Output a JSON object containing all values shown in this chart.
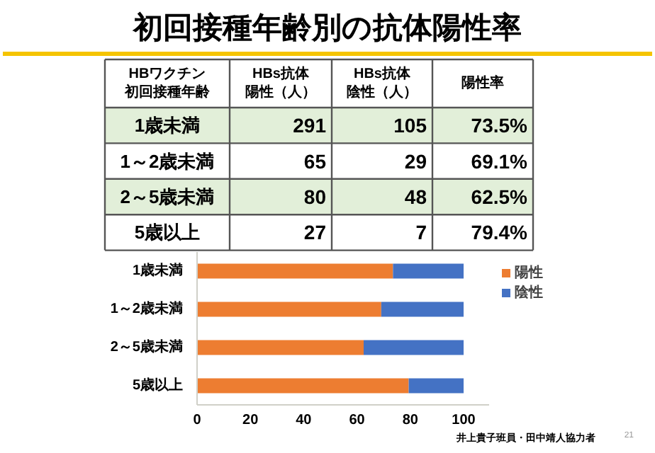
{
  "chart_data": [
    {
      "type": "other",
      "title": "初回接種年齢別の抗体陽性率",
      "ylabel": "HBワクチン初回接種年齢",
      "categories": [
        "1歳未満",
        "1～2歳未満",
        "2～5歳未満",
        "5歳以上"
      ],
      "series": [
        {
          "name": "HBs抗体陽性（人）",
          "values": [
            291,
            65,
            80,
            27
          ],
          "value_labels": [
            "291",
            "65",
            "80",
            "27"
          ]
        },
        {
          "name": "HBs抗体陰性（人）",
          "values": [
            105,
            29,
            48,
            7
          ],
          "value_labels": [
            "105",
            "29",
            "48",
            "7"
          ]
        },
        {
          "name": "陽性率",
          "values": [
            73.5,
            69.1,
            62.5,
            79.4
          ],
          "value_labels": [
            "73.5%",
            "69.1%",
            "62.5%",
            "79.4%"
          ]
        }
      ],
      "colors": [
        "#e2efd9",
        "#ffffff",
        "#e2efd9",
        "#ffffff"
      ]
    },
    {
      "type": "bar",
      "orientation": "horizontal",
      "stacked": true,
      "categories": [
        "1歳未満",
        "1～2歳未満",
        "2～5歳未満",
        "5歳以上"
      ],
      "series": [
        {
          "name": "陽性",
          "color": "#ed7d31",
          "values": [
            73.5,
            69.1,
            62.5,
            79.4
          ]
        },
        {
          "name": "陰性",
          "color": "#4472c4",
          "values": [
            26.5,
            30.9,
            37.5,
            20.6
          ]
        }
      ],
      "xlim": [
        0,
        100
      ],
      "xticks": [
        0,
        20,
        40,
        60,
        80,
        100
      ],
      "legend": "right",
      "grid": false,
      "annotations": [
        "井上貴子班員・田中靖人協力者",
        "21"
      ]
    }
  ]
}
